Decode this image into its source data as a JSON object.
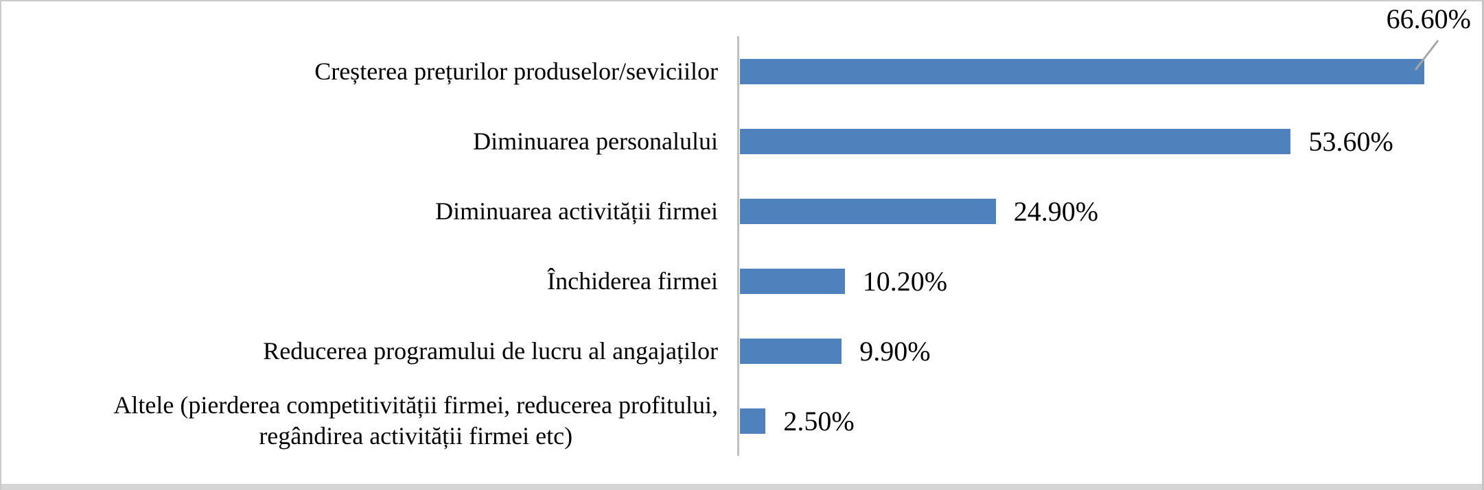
{
  "chart_data": {
    "type": "bar",
    "orientation": "horizontal",
    "title": "",
    "xlabel": "",
    "ylabel": "",
    "xlim": [
      0,
      70
    ],
    "grid": false,
    "legend": false,
    "background": "#ffffff",
    "bar_color": "#4f81bd",
    "axis_line_color": "#c0c0c0",
    "leader_line_color": "#a6a6a6",
    "text_color": "#000000",
    "frame_border_color": "#cbcbcb",
    "bottom_strip_color": "#d5d5d5",
    "categories": [
      "Creșterea prețurilor produselor/seviciilor",
      "Diminuarea personalului",
      "Diminuarea activității firmei",
      "Închiderea firmei",
      "Reducerea programului de lucru al angajaților",
      "Altele (pierderea competitivității firmei, reducerea profitului,\nregândirea activității firmei etc)"
    ],
    "values": [
      66.6,
      53.6,
      24.9,
      10.2,
      9.9,
      2.5
    ],
    "value_labels": [
      "66.60%",
      "53.60%",
      "24.90%",
      "10.20%",
      "9.90%",
      "2.50%"
    ],
    "first_label_above": true
  }
}
